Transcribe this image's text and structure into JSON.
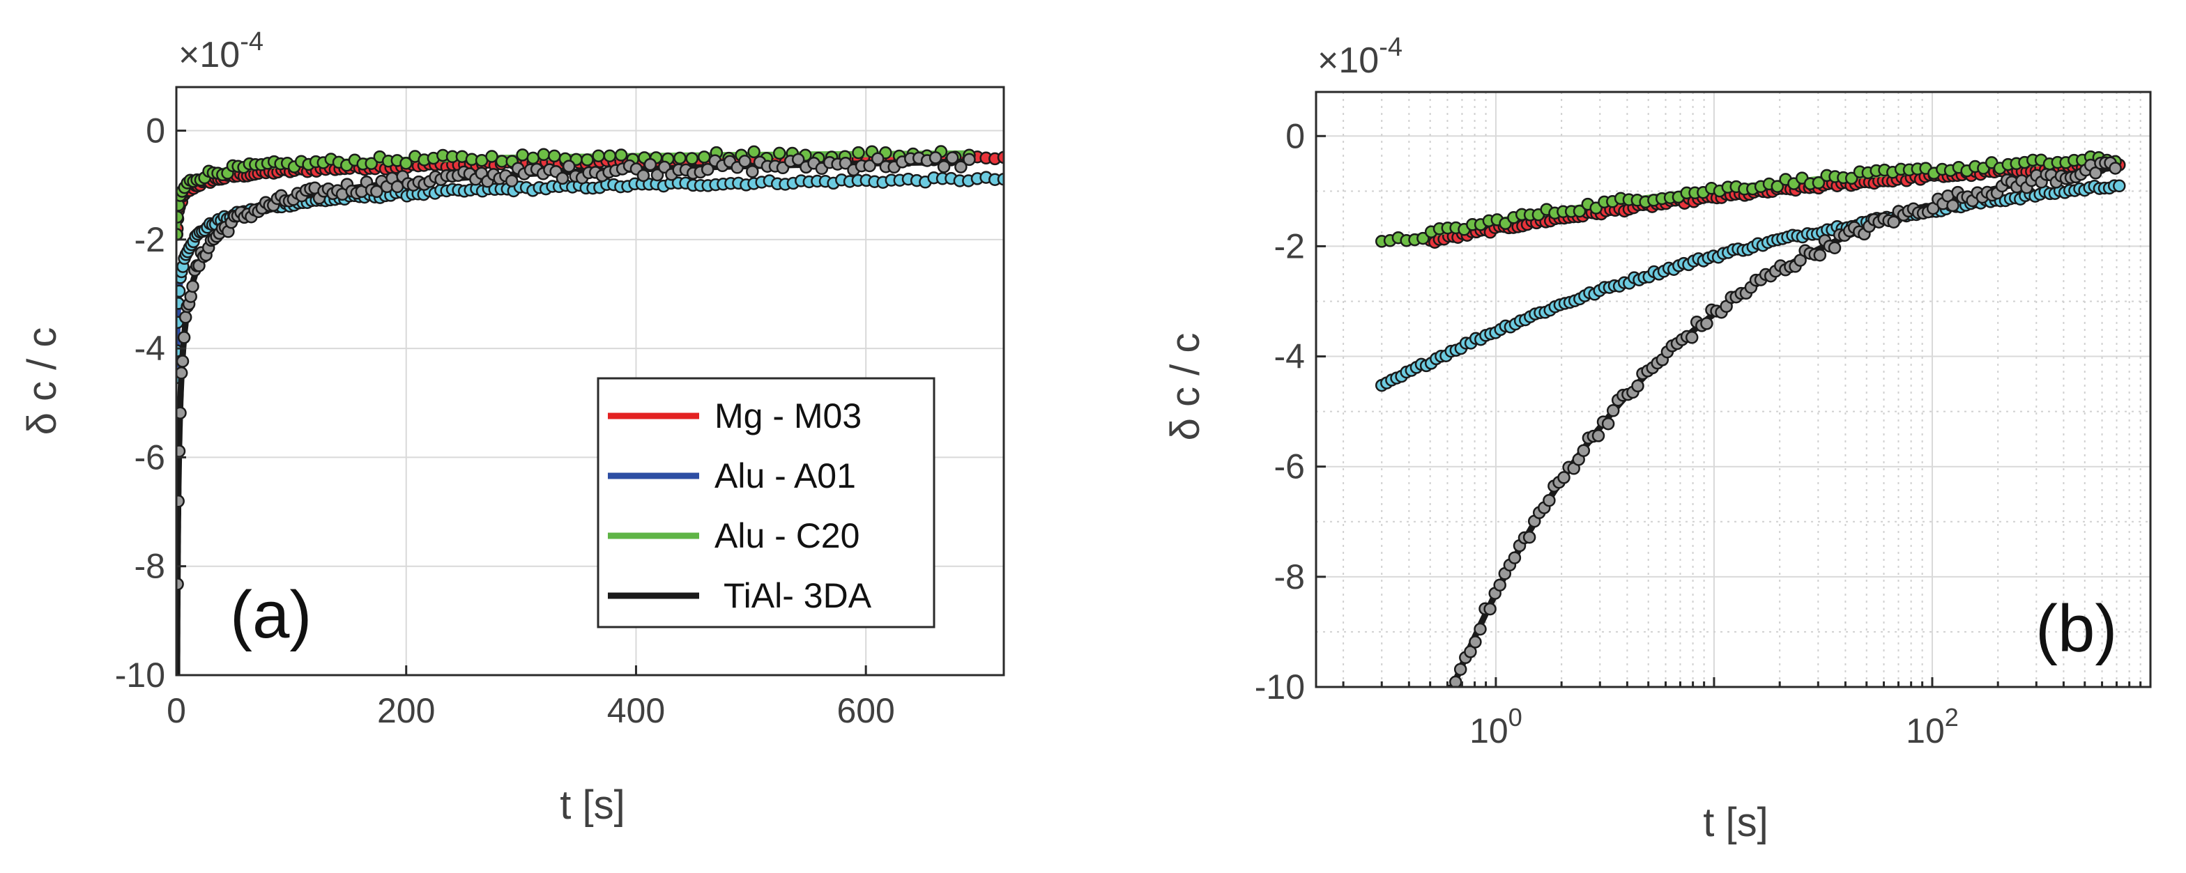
{
  "chart_data": [
    {
      "type": "scatter",
      "panel_label": "(a)",
      "x_scale": "linear",
      "xlabel": "t [s]",
      "ylabel": "δ c  / c",
      "y_exponent_label": "×10",
      "y_exponent_power": "-4",
      "xlim": [
        0,
        720
      ],
      "ylim": [
        -10,
        0.8
      ],
      "x_ticks": [
        0,
        200,
        400,
        600
      ],
      "x_tick_labels": [
        "0",
        "200",
        "400",
        "600"
      ],
      "y_ticks": [
        -10,
        -8,
        -6,
        -4,
        -2,
        0
      ],
      "y_tick_labels": [
        "-10",
        "-8",
        "-6",
        "-4",
        "-2",
        "0"
      ],
      "grid": true,
      "legend_position": "lower-right",
      "legend": [
        {
          "label": "Mg - M03",
          "color": "#e32222"
        },
        {
          "label": "Alu - A01",
          "color": "#2d4ea3"
        },
        {
          "label": "Alu - C20",
          "color": "#5fb446"
        },
        {
          "label": " TiAl- 3DA",
          "color": "#1a1a1a"
        }
      ]
    },
    {
      "type": "scatter",
      "panel_label": "(b)",
      "x_scale": "log",
      "xlabel": "t [s]",
      "ylabel": "δ c / c",
      "y_exponent_label": "×10",
      "y_exponent_power": "-4",
      "xlim": [
        0.15,
        1000
      ],
      "ylim": [
        -10,
        0.8
      ],
      "x_ticks": [
        1,
        100
      ],
      "x_tick_labels": [
        "10",
        "10"
      ],
      "x_tick_powers": [
        "0",
        "2"
      ],
      "y_ticks": [
        -10,
        -8,
        -6,
        -4,
        -2,
        0
      ],
      "y_tick_labels": [
        "-10",
        "-8",
        "-6",
        "-4",
        "-2",
        "0"
      ],
      "grid": true
    }
  ],
  "series": [
    {
      "name": "Mg - M03",
      "line_color": "#e32222",
      "marker_color": "#e8333a",
      "model": {
        "A": -1.69,
        "p": 0.18
      },
      "t0": 0.5,
      "t_end": 720,
      "n_points": 150,
      "noise": 0.04
    },
    {
      "name": "Alu - A01",
      "line_color": "#2d4ea3",
      "marker_color": "#6ccbe0",
      "model": {
        "A": -3.54,
        "p": 0.21
      },
      "t0": 0.3,
      "t_end": 720,
      "n_points": 150,
      "noise": 0.04
    },
    {
      "name": "Alu - C20",
      "line_color": "#5fb446",
      "marker_color": "#6dbe45",
      "model": {
        "A": -1.55,
        "p": 0.2
      },
      "t0": 0.3,
      "t_end": 690,
      "n_points": 90,
      "noise": 0.07
    },
    {
      "name": "TiAl- 3DA",
      "line_color": "#1a1a1a",
      "marker_color": "#9a9a9a",
      "model": {
        "A": -8.3,
        "p": 0.41
      },
      "t0": 0.3,
      "t_end": 690,
      "n_points": 150,
      "noise": 0.12
    }
  ]
}
